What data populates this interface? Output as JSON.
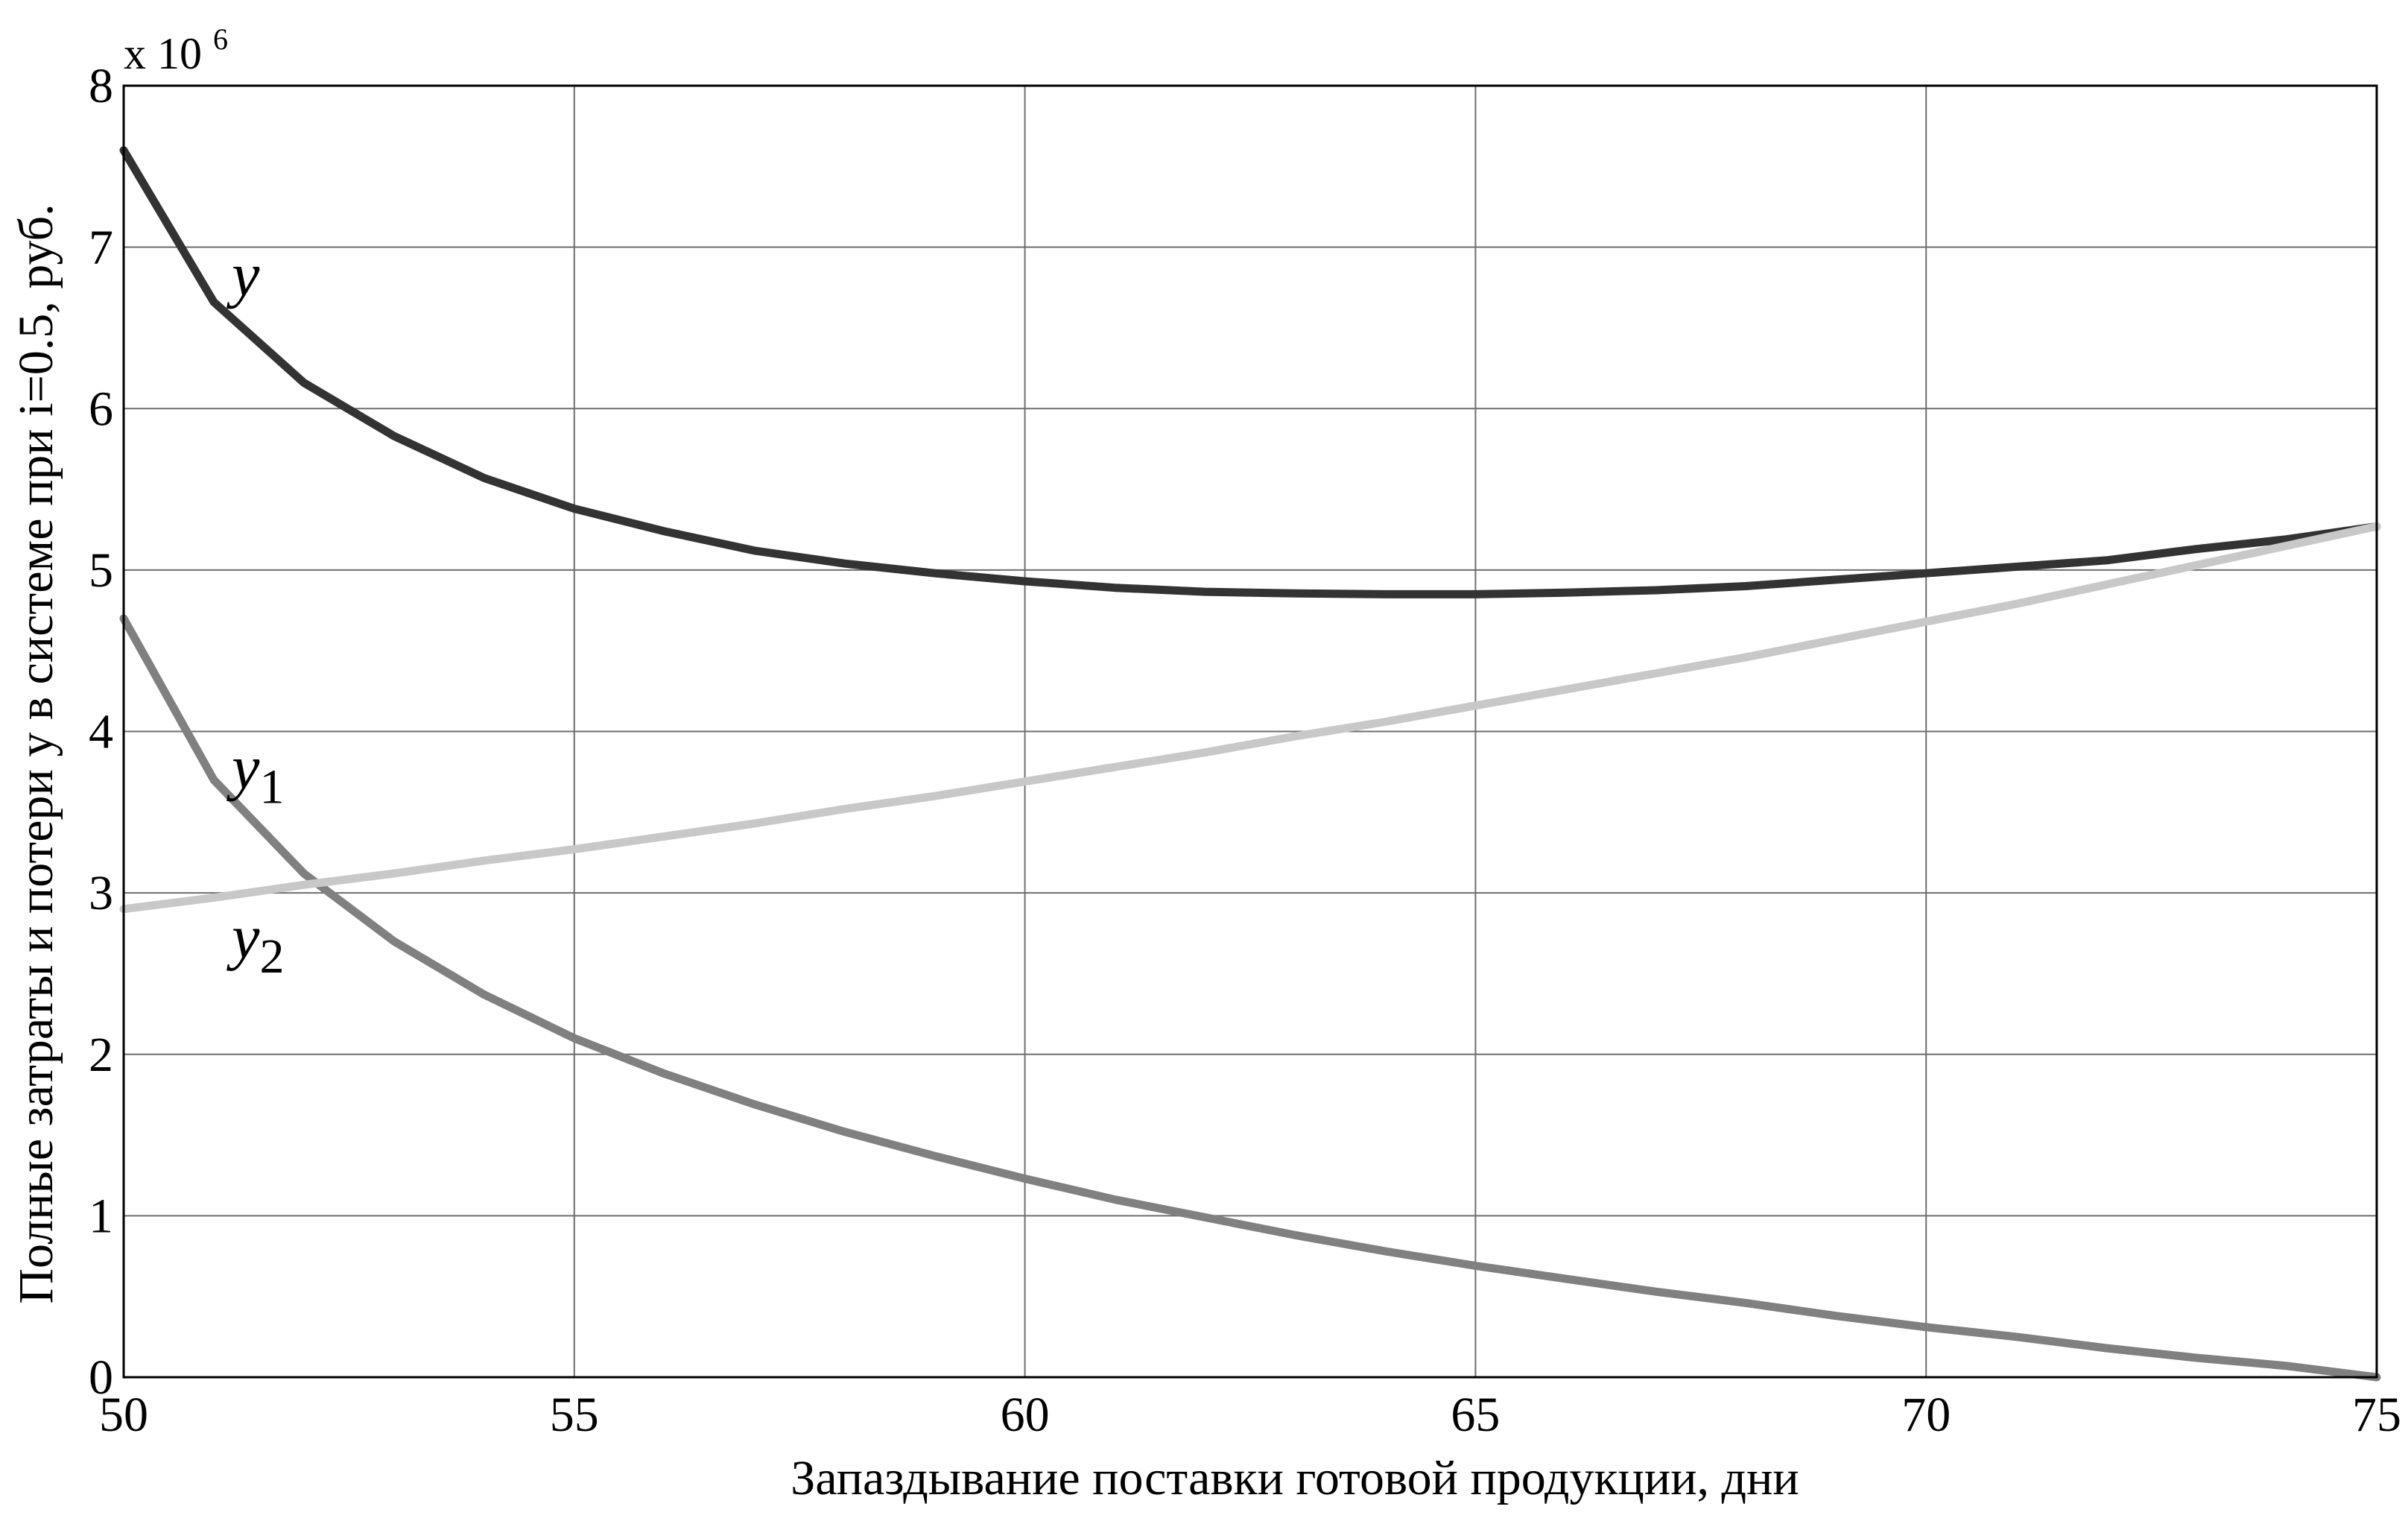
{
  "chart_data": {
    "type": "line",
    "title": "",
    "xlabel": "Запаздывание поставки готовой продукции, дни",
    "ylabel": "Полные затраты и потери y в системе при i=0.5, руб.",
    "y_multiplier": {
      "base": "x 10",
      "exponent": "6"
    },
    "xlim": [
      50,
      75
    ],
    "ylim": [
      0,
      8
    ],
    "x_ticks": [
      50,
      55,
      60,
      65,
      70,
      75
    ],
    "y_ticks": [
      0,
      1,
      2,
      3,
      4,
      5,
      6,
      7,
      8
    ],
    "grid": true,
    "legend": "none",
    "x": [
      50,
      51,
      52,
      53,
      54,
      55,
      56,
      57,
      58,
      59,
      60,
      61,
      62,
      63,
      64,
      65,
      66,
      67,
      68,
      69,
      70,
      71,
      72,
      73,
      74,
      75
    ],
    "series": [
      {
        "name": "y",
        "color": "#333333",
        "label": {
          "main": "y",
          "sub": "",
          "x": 51.2,
          "y": 6.7
        },
        "values": [
          7.6,
          6.66,
          6.16,
          5.83,
          5.57,
          5.38,
          5.24,
          5.12,
          5.04,
          4.98,
          4.93,
          4.89,
          4.865,
          4.855,
          4.85,
          4.85,
          4.86,
          4.875,
          4.9,
          4.94,
          4.98,
          5.02,
          5.06,
          5.13,
          5.19,
          5.27
        ]
      },
      {
        "name": "y1",
        "color": "#808080",
        "label": {
          "main": "y",
          "sub": "1",
          "x": 51.2,
          "y": 3.65
        },
        "values": [
          4.7,
          3.7,
          3.12,
          2.7,
          2.37,
          2.1,
          1.88,
          1.69,
          1.52,
          1.37,
          1.23,
          1.1,
          0.99,
          0.88,
          0.78,
          0.69,
          0.61,
          0.53,
          0.46,
          0.38,
          0.31,
          0.25,
          0.18,
          0.12,
          0.07,
          0.0
        ]
      },
      {
        "name": "y2",
        "color": "#c8c8c8",
        "label": {
          "main": "y",
          "sub": "2",
          "x": 51.2,
          "y": 2.6
        },
        "values": [
          2.9,
          2.97,
          3.05,
          3.12,
          3.2,
          3.27,
          3.35,
          3.43,
          3.52,
          3.6,
          3.69,
          3.78,
          3.87,
          3.97,
          4.06,
          4.16,
          4.26,
          4.36,
          4.46,
          4.57,
          4.68,
          4.79,
          4.91,
          5.03,
          5.15,
          5.27
        ]
      }
    ]
  }
}
